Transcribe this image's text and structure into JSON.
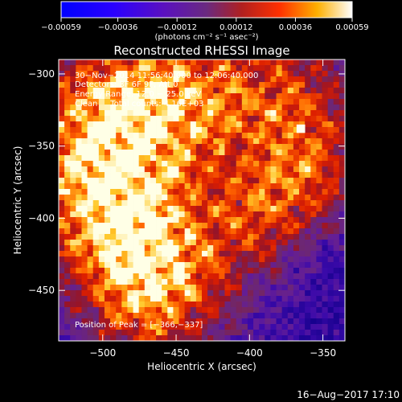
{
  "chart_data": {
    "type": "heatmap",
    "title": "Reconstructed RHESSI Image",
    "xlabel": "Heliocentric X (arcsec)",
    "ylabel": "Heliocentric Y (arcsec)",
    "xlim": [
      -530,
      -335
    ],
    "ylim": [
      -485,
      -290
    ],
    "xticks": [
      -500,
      -450,
      -400,
      -350
    ],
    "xtick_labels": [
      "−500",
      "−450",
      "−400",
      "−350"
    ],
    "yticks": [
      -300,
      -350,
      -400,
      -450
    ],
    "ytick_labels": [
      "−300",
      "−350",
      "−400",
      "−450"
    ],
    "colorbar": {
      "min": -0.00059,
      "max": 0.00059,
      "ticks": [
        -0.00059,
        -0.00036,
        -0.00012,
        0.00012,
        0.00036,
        0.00059
      ],
      "tick_labels": [
        "−0.00059",
        "−0.00036",
        "−0.00012",
        "0.00012",
        "0.00036",
        "0.00059"
      ],
      "unit_label": "(photons cm⁻² s⁻¹ asec⁻²)"
    },
    "annotations": [
      "30−Nov−2014 11:56:40.000 to 12:06:40.000",
      "Detectors: 3F 6F 9F, Att 0",
      "Energy Range: 12.0 − 25.0 keV",
      "Clean     Total counts: 4.16E+03"
    ],
    "peak_label": "Position of Peak = [−366,−337]",
    "peak": [
      -366,
      -337
    ],
    "grid": false
  },
  "footer": {
    "timestamp": "16−Aug−2017 17:10"
  }
}
